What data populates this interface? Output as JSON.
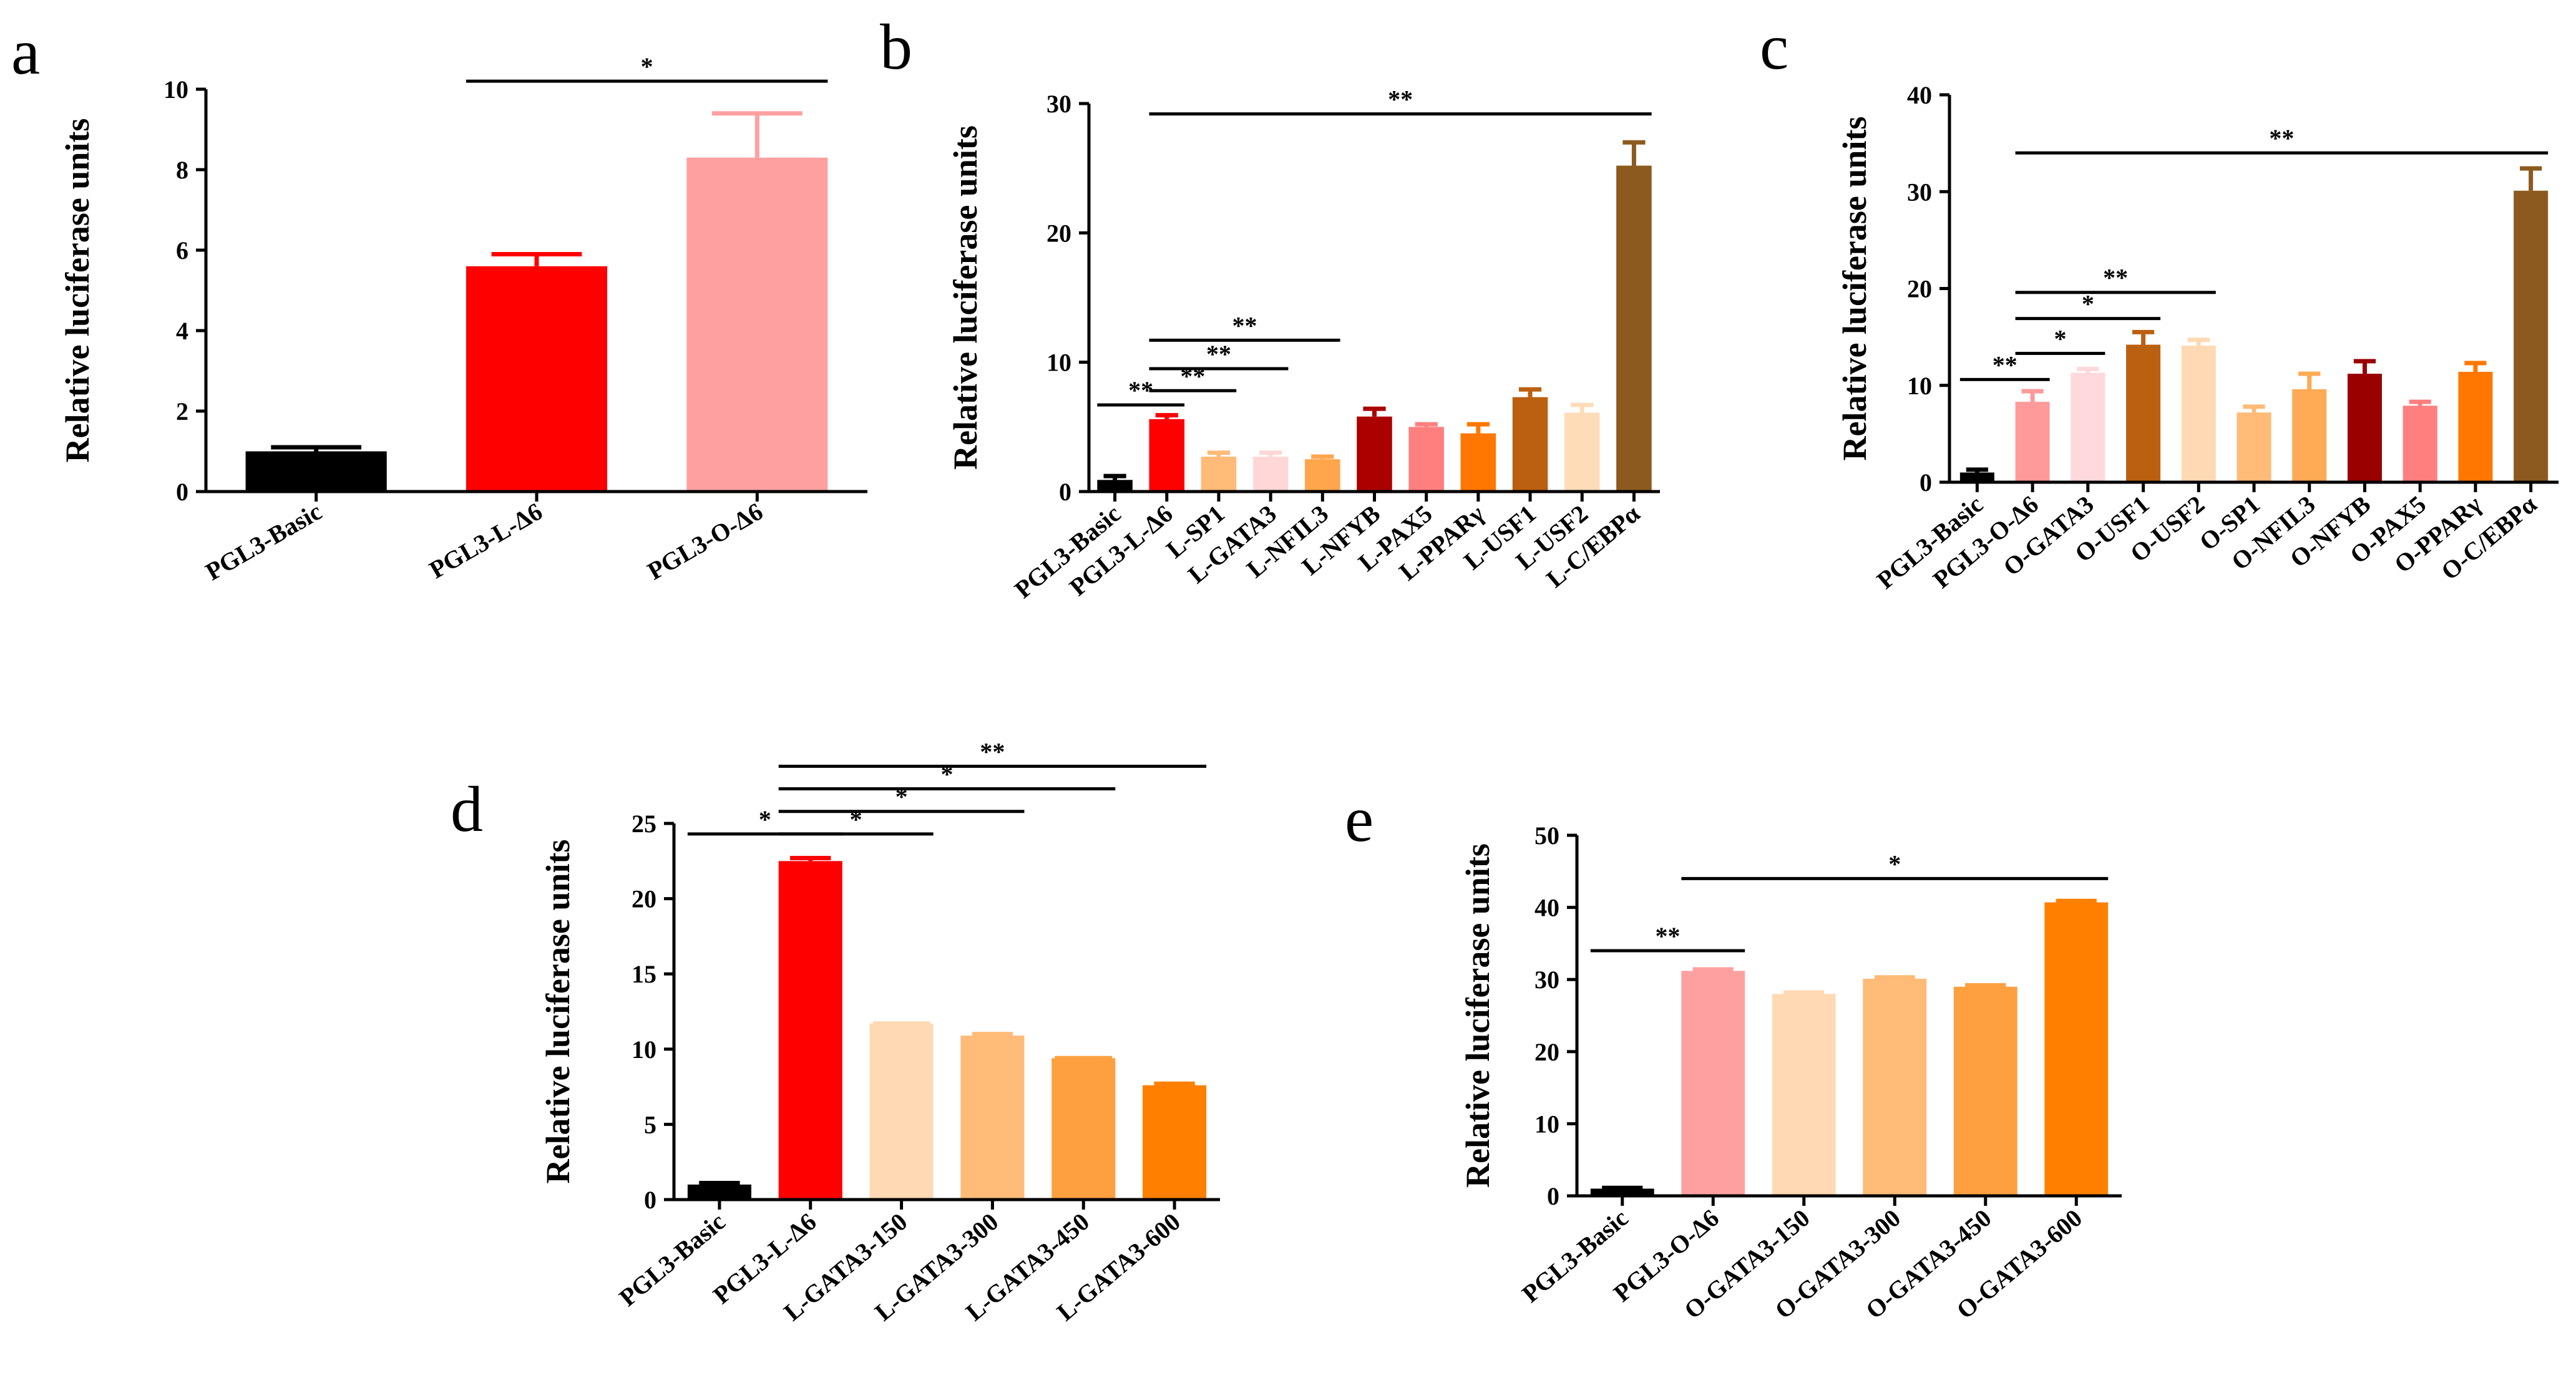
{
  "chart_data": [
    {
      "type": "bar",
      "panel": "a",
      "ylabel": "Relative luciferase units",
      "ylim": [
        0,
        10
      ],
      "yticks": [
        0,
        2,
        4,
        6,
        8,
        10
      ],
      "categories": [
        "PGL3-Basic",
        "PGL3-L-Δ6",
        "PGL3-O-Δ6"
      ],
      "values": [
        1.0,
        5.6,
        8.3
      ],
      "errors": [
        0.1,
        0.3,
        1.1
      ],
      "colors": [
        "#000000",
        "#ff0000",
        "#ffa0a0"
      ],
      "significance": [
        {
          "from": 1,
          "to": 2,
          "label": "*",
          "y": 10.2
        }
      ]
    },
    {
      "type": "bar",
      "panel": "b",
      "ylabel": "Relative luciferase units",
      "ylim": [
        0,
        30
      ],
      "yticks": [
        0,
        10,
        20,
        30
      ],
      "categories": [
        "PGL3-Basic",
        "PGL3-L-Δ6",
        "L-SP1",
        "L-GATA3",
        "L-NFIL3",
        "L-NFYB",
        "L-PAX5",
        "L-PPARγ",
        "L-USF1",
        "L-USF2",
        "L-C/EBPα"
      ],
      "values": [
        0.9,
        5.6,
        2.7,
        2.7,
        2.5,
        5.8,
        5.0,
        4.5,
        7.3,
        6.1,
        25.2
      ],
      "errors": [
        0.3,
        0.3,
        0.3,
        0.3,
        0.2,
        0.6,
        0.2,
        0.7,
        0.6,
        0.6,
        1.8
      ],
      "colors": [
        "#000000",
        "#ff0000",
        "#ffbb77",
        "#ffd7d7",
        "#ffa64d",
        "#aa0000",
        "#ff7f7f",
        "#ff7700",
        "#bb6010",
        "#ffdcb8",
        "#8c5a1e"
      ],
      "significance": [
        {
          "from": 0,
          "to": 1,
          "label": "**",
          "y": 6.7
        },
        {
          "from": 1,
          "to": 2,
          "label": "**",
          "y": 7.8
        },
        {
          "from": 1,
          "to": 3,
          "label": "**",
          "y": 9.5
        },
        {
          "from": 1,
          "to": 4,
          "label": "**",
          "y": 11.7
        },
        {
          "from": 1,
          "to": 10,
          "label": "**",
          "y": 29.2
        }
      ]
    },
    {
      "type": "bar",
      "panel": "c",
      "ylabel": "Relative luciferase units",
      "ylim": [
        0,
        40
      ],
      "yticks": [
        0,
        10,
        20,
        30,
        40
      ],
      "categories": [
        "PGL3-Basic",
        "PGL3-O-Δ6",
        "O-GATA3",
        "O-USF1",
        "O-USF2",
        "O-SP1",
        "O-NFIL3",
        "O-NFYB",
        "O-PAX5",
        "O-PPARγ",
        "O-C/EBPα"
      ],
      "values": [
        1.0,
        8.3,
        11.3,
        14.2,
        14.1,
        7.2,
        9.6,
        11.2,
        7.9,
        11.4,
        30.1
      ],
      "errors": [
        0.3,
        1.1,
        0.4,
        1.3,
        0.6,
        0.6,
        1.6,
        1.3,
        0.4,
        0.9,
        2.3
      ],
      "colors": [
        "#000000",
        "#ff9a9a",
        "#ffd9dc",
        "#bb6010",
        "#ffd9b3",
        "#ffbb77",
        "#ffaa55",
        "#990000",
        "#ff7f7f",
        "#ff7700",
        "#8c5a1e"
      ],
      "significance": [
        {
          "from": 0,
          "to": 1,
          "label": "**",
          "y": 10.6
        },
        {
          "from": 1,
          "to": 2,
          "label": "*",
          "y": 13.3
        },
        {
          "from": 1,
          "to": 3,
          "label": "*",
          "y": 16.9
        },
        {
          "from": 1,
          "to": 4,
          "label": "**",
          "y": 19.6
        },
        {
          "from": 1,
          "to": 10,
          "label": "**",
          "y": 34.0
        }
      ]
    },
    {
      "type": "bar",
      "panel": "d",
      "ylabel": "Relative luciferase units",
      "ylim": [
        0,
        25
      ],
      "yticks": [
        0,
        5,
        10,
        15,
        20,
        25
      ],
      "categories": [
        "PGL3-Basic",
        "PGL3-L-Δ6",
        "L-GATA3-150",
        "L-GATA3-300",
        "L-GATA3-450",
        "L-GATA3-600"
      ],
      "values": [
        1.0,
        22.5,
        11.7,
        10.9,
        9.4,
        7.6
      ],
      "errors": [
        0.1,
        0.2,
        0.0,
        0.1,
        0.0,
        0.1
      ],
      "colors": [
        "#000000",
        "#ff0000",
        "#ffd9b3",
        "#ffbb77",
        "#ffa040",
        "#ff8000"
      ],
      "significance": [
        {
          "from": 0,
          "to": 1,
          "label": "*",
          "y": 24.3
        },
        {
          "from": 1,
          "to": 2,
          "label": "*",
          "y": 24.3
        },
        {
          "from": 1,
          "to": 3,
          "label": "*",
          "y": 25.8
        },
        {
          "from": 1,
          "to": 4,
          "label": "*",
          "y": 27.3
        },
        {
          "from": 1,
          "to": 5,
          "label": "**",
          "y": 28.8
        }
      ]
    },
    {
      "type": "bar",
      "panel": "e",
      "ylabel": "Relative luciferase units",
      "ylim": [
        0,
        50
      ],
      "yticks": [
        0,
        10,
        20,
        30,
        40,
        50
      ],
      "categories": [
        "PGL3-Basic",
        "PGL3-O-Δ6",
        "O-GATA3-150",
        "O-GATA3-300",
        "O-GATA3-450",
        "O-GATA3-600"
      ],
      "values": [
        1.0,
        31.2,
        28.0,
        30.1,
        29.0,
        40.7
      ],
      "errors": [
        0.1,
        0.2,
        0.2,
        0.2,
        0.2,
        0.2
      ],
      "colors": [
        "#000000",
        "#ffa0a0",
        "#ffd9b3",
        "#ffbb77",
        "#ffa040",
        "#ff8000"
      ],
      "significance": [
        {
          "from": 0,
          "to": 1,
          "label": "**",
          "y": 34.0
        },
        {
          "from": 1,
          "to": 5,
          "label": "*",
          "y": 44.0
        }
      ]
    }
  ]
}
